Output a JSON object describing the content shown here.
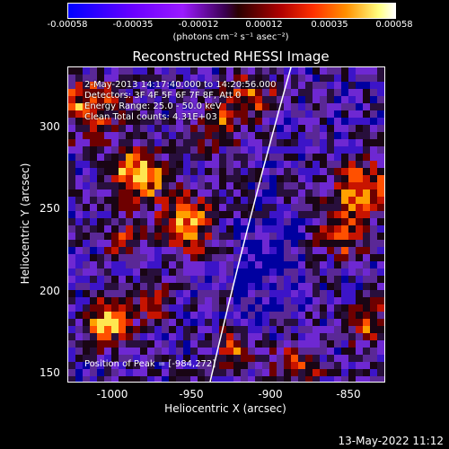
{
  "colorbar": {
    "ticks": [
      "-0.00058",
      "-0.00035",
      "-0.00012",
      "0.00012",
      "0.00035",
      "0.00058"
    ],
    "units": "(photons cm⁻² s⁻¹ asec⁻²)"
  },
  "title": "Reconstructed RHESSI Image",
  "info": {
    "time_range": "2-May-2013 14:17:40.000 to 14:20:56.000",
    "detectors": "Detectors: 3F 4F 5F 6F 7F 8F, Att 0",
    "energy": "Energy Range: 25.0 - 50.0 keV",
    "clean": "Clean    Total counts: 4.31E+03",
    "peak": "Position of Peak = [-984,272]"
  },
  "axes": {
    "xlabel": "Heliocentric X (arcsec)",
    "ylabel": "Heliocentric Y (arcsec)",
    "xticks": [
      "-1000",
      "-950",
      "-900",
      "-850"
    ],
    "yticks": [
      "300",
      "250",
      "200",
      "150"
    ]
  },
  "timestamp": "13-May-2022 11:12"
}
